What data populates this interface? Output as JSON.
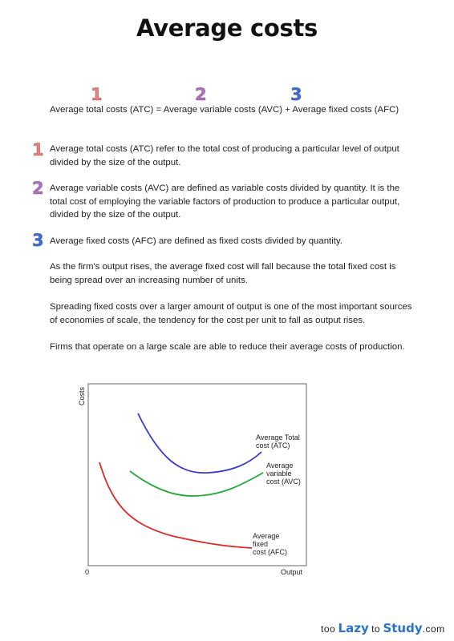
{
  "title": "Average costs",
  "formula": {
    "markers": [
      "1",
      "2",
      "3"
    ],
    "text": "Average total costs (ATC) = Average variable costs (AVC) + Average fixed costs (AFC)"
  },
  "definitions": [
    {
      "number": "1",
      "term": "Average total costs (ATC)",
      "text": " refer to the total cost of producing a particular level of output divided by the size of the output."
    },
    {
      "number": "2",
      "term": "Average variable costs (AVC)",
      "text": " are defined as variable costs divided by quantity.  It is the total cost of employing the variable factors of production to produce a particular output, divided by the size of the output."
    },
    {
      "number": "3",
      "term": "Average fixed costs (AFC)",
      "text": " are defined as fixed costs divided by quantity."
    }
  ],
  "paragraphs": [
    "As the firm's output rises, the average fixed cost will fall because the total fixed cost is being spread over an increasing number of units.",
    "Spreading fixed costs over a larger amount of output is one of the most important sources of economies of scale, the tendency for the cost per unit to fall as output rises.",
    "Firms that operate on a large scale are able to reduce their average costs of production."
  ],
  "colors": {
    "marker1": "#f08080",
    "marker2": "#b56fc6",
    "marker3": "#3d6fd6",
    "atc": "#3a3ad0",
    "avc": "#22aa3a",
    "afc": "#e22626",
    "brand": "#2a73c9"
  },
  "chart_data": {
    "type": "line",
    "xlabel": "Output",
    "ylabel": "Costs",
    "origin_label": "0",
    "series": [
      {
        "name": "Average Total cost (ATC)",
        "label_lines": [
          "Average Total",
          "cost (ATC)"
        ]
      },
      {
        "name": "Average variable cost (AVC)",
        "label_lines": [
          "Average",
          "variable",
          "cost (AVC)"
        ]
      },
      {
        "name": "Average fixed cost (AFC)",
        "label_lines": [
          "Average",
          "fixed",
          "cost (AFC)"
        ]
      }
    ]
  },
  "footer": {
    "part1": "too",
    "part2": "Lazy",
    "part3": "to",
    "part4": "Study",
    "part5": ".com"
  }
}
